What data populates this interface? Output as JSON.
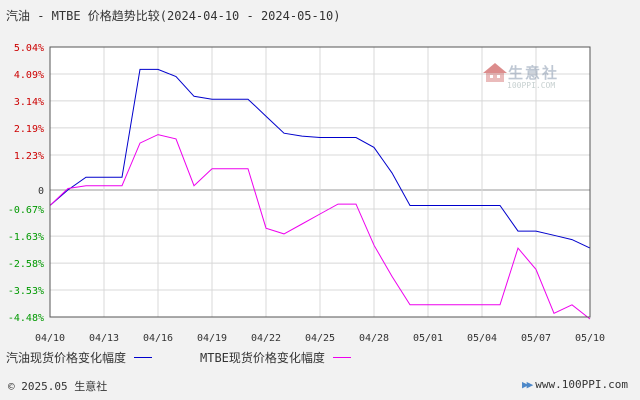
{
  "title": "汽油 - MTBE 价格趋势比较(2024-04-10 - 2024-05-10)",
  "watermark": {
    "name": "生意社",
    "url": "100PPI.COM"
  },
  "footer": {
    "copyright": "© 2025.05 生意社",
    "website": "www.100PPI.com"
  },
  "colors": {
    "series1": "#0000cc",
    "series2": "#ee00ee",
    "grid": "#d8d8d8",
    "zero": "#999999",
    "tickPositive": "#cc0000",
    "tickNegative": "#009900"
  },
  "chart_data": {
    "type": "line",
    "ylim": [
      -4.48,
      5.04
    ],
    "yticks": [
      "5.04%",
      "4.09%",
      "3.14%",
      "2.19%",
      "1.23%",
      "0",
      "-0.67%",
      "-1.63%",
      "-2.58%",
      "-3.53%",
      "-4.48%"
    ],
    "ytick_values": [
      5.04,
      4.09,
      3.14,
      2.19,
      1.23,
      0,
      -0.67,
      -1.63,
      -2.58,
      -3.53,
      -4.48
    ],
    "xlim": [
      0,
      30
    ],
    "xticks": [
      "04/10",
      "04/13",
      "04/16",
      "04/19",
      "04/22",
      "04/25",
      "04/28",
      "05/01",
      "05/04",
      "05/07",
      "05/10"
    ],
    "xtick_values": [
      0,
      3,
      6,
      9,
      12,
      15,
      18,
      21,
      24,
      27,
      30
    ],
    "series": [
      {
        "name": "汽油现货价格变化幅度",
        "x": [
          0,
          1,
          2,
          3,
          4,
          5,
          6,
          7,
          8,
          9,
          10,
          11,
          12,
          13,
          14,
          15,
          16,
          17,
          18,
          19,
          20,
          21,
          22,
          23,
          24,
          25,
          26,
          27,
          28,
          29,
          30
        ],
        "values": [
          -0.55,
          0.0,
          0.45,
          0.45,
          0.45,
          4.25,
          4.25,
          4.0,
          3.3,
          3.2,
          3.2,
          3.2,
          2.6,
          2.0,
          1.9,
          1.85,
          1.85,
          1.85,
          1.5,
          0.6,
          -0.55,
          -0.55,
          -0.55,
          -0.55,
          -0.55,
          -0.55,
          -1.45,
          -1.45,
          -1.6,
          -1.75,
          -2.05
        ]
      },
      {
        "name": "MTBE现货价格变化幅度",
        "x": [
          0,
          1,
          2,
          3,
          4,
          5,
          6,
          7,
          8,
          9,
          10,
          11,
          12,
          13,
          14,
          15,
          16,
          17,
          18,
          19,
          20,
          21,
          22,
          23,
          24,
          25,
          26,
          27,
          28,
          29,
          30
        ],
        "values": [
          -0.55,
          0.05,
          0.15,
          0.15,
          0.15,
          1.65,
          1.95,
          1.8,
          0.15,
          0.75,
          0.75,
          0.75,
          -1.35,
          -1.55,
          -1.2,
          -0.85,
          -0.5,
          -0.5,
          -1.95,
          -3.05,
          -4.05,
          -4.05,
          -4.05,
          -4.05,
          -4.05,
          -4.05,
          -2.05,
          -2.8,
          -4.35,
          -4.05,
          -4.55
        ]
      }
    ]
  }
}
